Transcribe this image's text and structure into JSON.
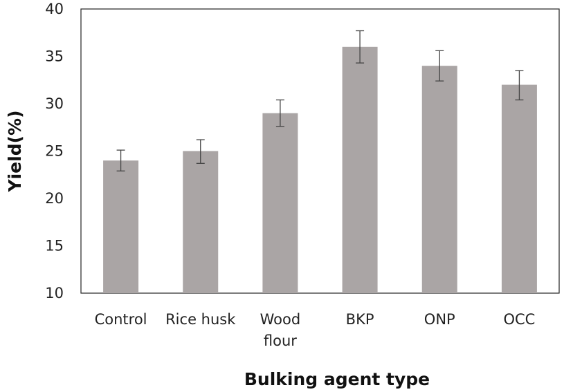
{
  "chart_data": {
    "type": "bar",
    "title": "",
    "xlabel": "Bulking agent type",
    "ylabel": "Yield(%)",
    "ylim": [
      10,
      40
    ],
    "yticks": [
      10,
      15,
      20,
      25,
      30,
      35,
      40
    ],
    "grid": false,
    "categories": [
      [
        "Control"
      ],
      [
        "Rice husk"
      ],
      [
        "Wood",
        "flour"
      ],
      [
        "BKP"
      ],
      [
        "ONP"
      ],
      [
        "OCC"
      ]
    ],
    "values": [
      24,
      25,
      29,
      36,
      34,
      32
    ],
    "error_low": [
      22.9,
      23.7,
      27.6,
      34.3,
      32.4,
      30.4
    ],
    "error_high": [
      25.1,
      26.2,
      30.4,
      37.7,
      35.6,
      33.5
    ],
    "bar_color": "#aaa5a5",
    "error_color": "#444444",
    "axis_color": "#222222"
  }
}
